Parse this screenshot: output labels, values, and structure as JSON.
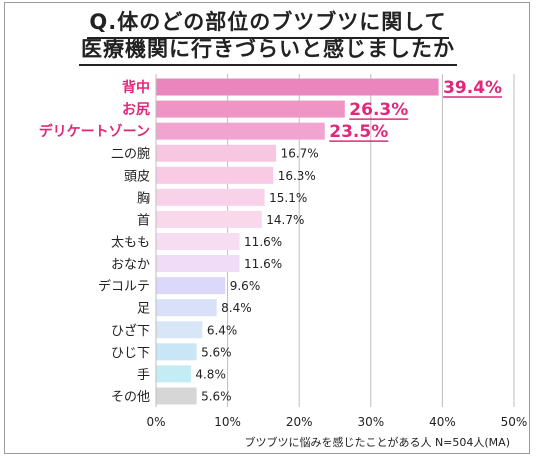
{
  "title": {
    "line1": "Q.体のどの部位のブツブツに関して",
    "line2": "医療機関に行きづらいと感じましたか"
  },
  "colors": {
    "highlight_text": "#e0287a",
    "normal_text": "#222222",
    "grid": "#bdbdbd"
  },
  "chart_data": {
    "type": "bar",
    "orientation": "horizontal",
    "categories": [
      "背中",
      "お尻",
      "デリケートゾーン",
      "二の腕",
      "頭皮",
      "胸",
      "首",
      "太もも",
      "おなか",
      "デコルテ",
      "足",
      "ひざ下",
      "ひじ下",
      "手",
      "その他"
    ],
    "values": [
      39.4,
      26.3,
      23.5,
      16.7,
      16.3,
      15.1,
      14.7,
      11.6,
      11.6,
      9.6,
      8.4,
      6.4,
      5.6,
      4.8,
      5.6
    ],
    "value_labels": [
      "39.4%",
      "26.3%",
      "23.5%",
      "16.7%",
      "16.3%",
      "15.1%",
      "14.7%",
      "11.6%",
      "11.6%",
      "9.6%",
      "8.4%",
      "6.4%",
      "5.6%",
      "4.8%",
      "5.6%"
    ],
    "highlighted": [
      true,
      true,
      true,
      false,
      false,
      false,
      false,
      false,
      false,
      false,
      false,
      false,
      false,
      false,
      false
    ],
    "bar_colors": [
      "#ea86bd",
      "#ee95c6",
      "#f1a4cf",
      "#f7c6e1",
      "#f8cae3",
      "#f8d2e8",
      "#f9d8eb",
      "#f6ddf2",
      "#f0dcf6",
      "#dcd8f9",
      "#d9e0fa",
      "#d8e6f7",
      "#c8e6f6",
      "#c3ecf4",
      "#d6d6d6"
    ],
    "xlim": [
      0,
      50
    ],
    "x_ticks": [
      "0%",
      "10%",
      "20%",
      "30%",
      "40%",
      "50%"
    ],
    "grid": true,
    "xlabel": "",
    "ylabel": "",
    "note": "ブツブツに悩みを感じたことがある人 N=504人(MA)"
  }
}
